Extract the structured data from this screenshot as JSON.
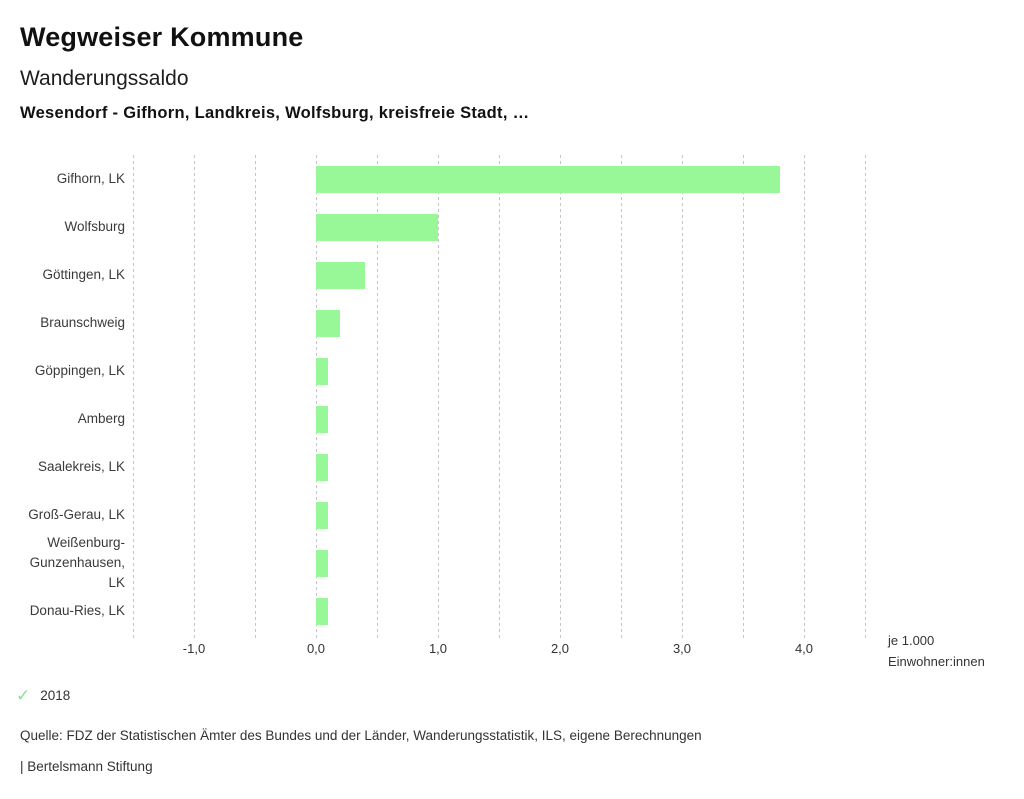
{
  "header": {
    "title": "Wegweiser Kommune",
    "subtitle": "Wanderungssaldo",
    "series_line": "Wesendorf - Gifhorn, Landkreis, Wolfsburg, kreisfreie Stadt, …"
  },
  "chart_data": {
    "type": "bar",
    "orientation": "horizontal",
    "title": "Wanderungssaldo",
    "subtitle": "Wesendorf - Gifhorn, Landkreis, Wolfsburg, kreisfreie Stadt, …",
    "categories": [
      "Gifhorn, LK",
      "Wolfsburg",
      "Göttingen, LK",
      "Braunschweig",
      "Göppingen, LK",
      "Amberg",
      "Saalekreis, LK",
      "Groß-Gerau, LK",
      "Weißenburg-Gunzenhausen, LK",
      "Donau-Ries, LK"
    ],
    "series": [
      {
        "name": "2018",
        "values": [
          3.8,
          1.0,
          0.4,
          0.2,
          0.1,
          0.1,
          0.1,
          0.1,
          0.1,
          0.1
        ]
      }
    ],
    "xlabel": "je 1.000 Einwohner:innen",
    "xlim": [
      -1.5,
      4.5
    ],
    "gridline_step": 0.5,
    "grid": true,
    "x_tick_values": [
      -1,
      0,
      1,
      2,
      3,
      4
    ],
    "x_tick_labels": [
      "-1,0",
      "0,0",
      "1,0",
      "2,0",
      "3,0",
      "4,0"
    ],
    "legend_position": "bottom-left",
    "bar_color": "#98f898",
    "gridline_color": "#c4c4c4"
  },
  "unit_label": {
    "line1": "je 1.000",
    "line2": "Einwohner:innen"
  },
  "legend": {
    "check_icon": "✓",
    "check_color": "#8ee08e",
    "year_label": "2018"
  },
  "footer": {
    "source": "Quelle: FDZ der Statistischen Ämter des Bundes und der Länder, Wanderungsstatistik, ILS, eigene Berechnungen",
    "attribution": "| Bertelsmann Stiftung"
  }
}
